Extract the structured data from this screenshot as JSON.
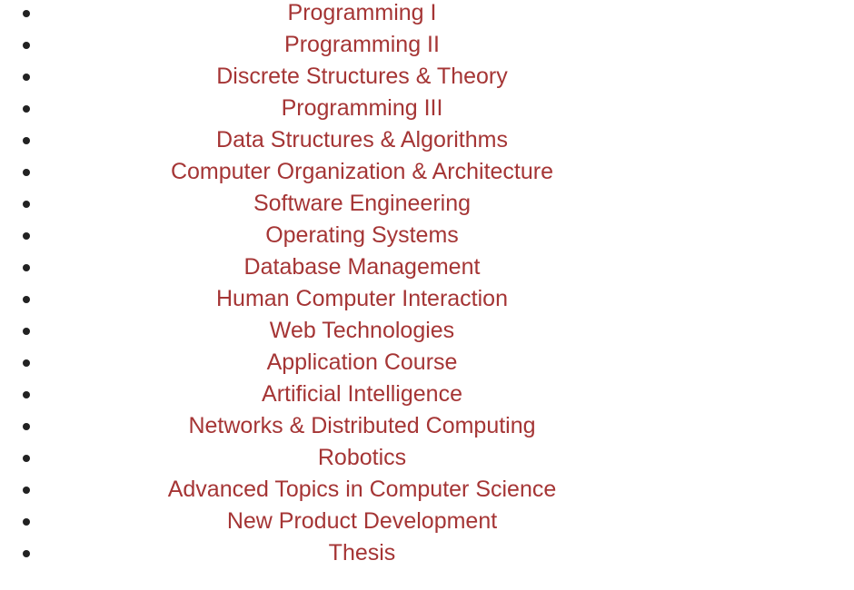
{
  "colors": {
    "link": "#a53535",
    "bullet": "#222222",
    "background": "#ffffff"
  },
  "courses": [
    {
      "label": "Programming I"
    },
    {
      "label": "Programming II"
    },
    {
      "label": "Discrete Structures & Theory"
    },
    {
      "label": "Programming III"
    },
    {
      "label": "Data Structures & Algorithms"
    },
    {
      "label": "Computer Organization & Architecture"
    },
    {
      "label": "Software Engineering"
    },
    {
      "label": "Operating Systems"
    },
    {
      "label": "Database Management"
    },
    {
      "label": "Human Computer Interaction"
    },
    {
      "label": "Web Technologies"
    },
    {
      "label": "Application Course"
    },
    {
      "label": "Artificial Intelligence"
    },
    {
      "label": "Networks & Distributed Computing"
    },
    {
      "label": "Robotics"
    },
    {
      "label": "Advanced Topics in Computer Science"
    },
    {
      "label": "New Product Development"
    },
    {
      "label": "Thesis"
    }
  ]
}
